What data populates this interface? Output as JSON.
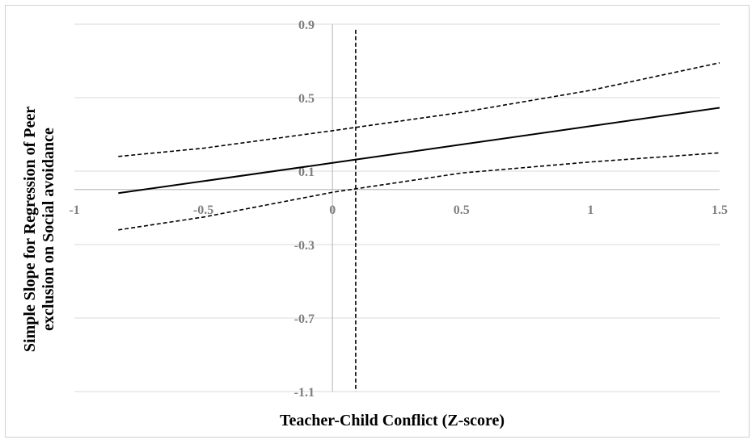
{
  "chart_data": {
    "type": "line",
    "title": "",
    "xlabel": "Teacher-Child Conflict (Z-score)",
    "ylabel_lines": [
      "Simple Slope for Regression of Peer",
      "exclusion on Social avoidance"
    ],
    "xlim": [
      -1,
      1.5
    ],
    "ylim": [
      -1.1,
      0.9
    ],
    "x_ticks": [
      -1,
      -0.5,
      0,
      0.5,
      1,
      1.5
    ],
    "x_tick_labels": [
      "-1",
      "-0.5",
      "0",
      "0.5",
      "1",
      "1.5"
    ],
    "y_ticks": [
      0.9,
      0.5,
      0.1,
      -0.3,
      -0.7,
      -1.1
    ],
    "y_tick_labels": [
      "0.9",
      "0.5",
      "0.1",
      "-0.3",
      "-0.7",
      "-1.1"
    ],
    "grid": true,
    "series": [
      {
        "style": "solid",
        "x": [
          -0.83,
          0.0,
          0.5,
          1.0,
          1.5
        ],
        "y": [
          -0.02,
          0.145,
          0.245,
          0.345,
          0.445
        ]
      },
      {
        "style": "dashed",
        "x": [
          -0.83,
          -0.5,
          0.0,
          0.5,
          1.0,
          1.5
        ],
        "y": [
          0.18,
          0.225,
          0.32,
          0.42,
          0.54,
          0.69
        ]
      },
      {
        "style": "dashed",
        "x": [
          -0.83,
          -0.5,
          0.0,
          0.5,
          1.0,
          1.5
        ],
        "y": [
          -0.22,
          -0.15,
          -0.015,
          0.09,
          0.15,
          0.2
        ]
      }
    ],
    "vertical_reference": {
      "style": "dashed",
      "x": 0.09,
      "y_range": [
        -1.1,
        0.87
      ]
    }
  }
}
